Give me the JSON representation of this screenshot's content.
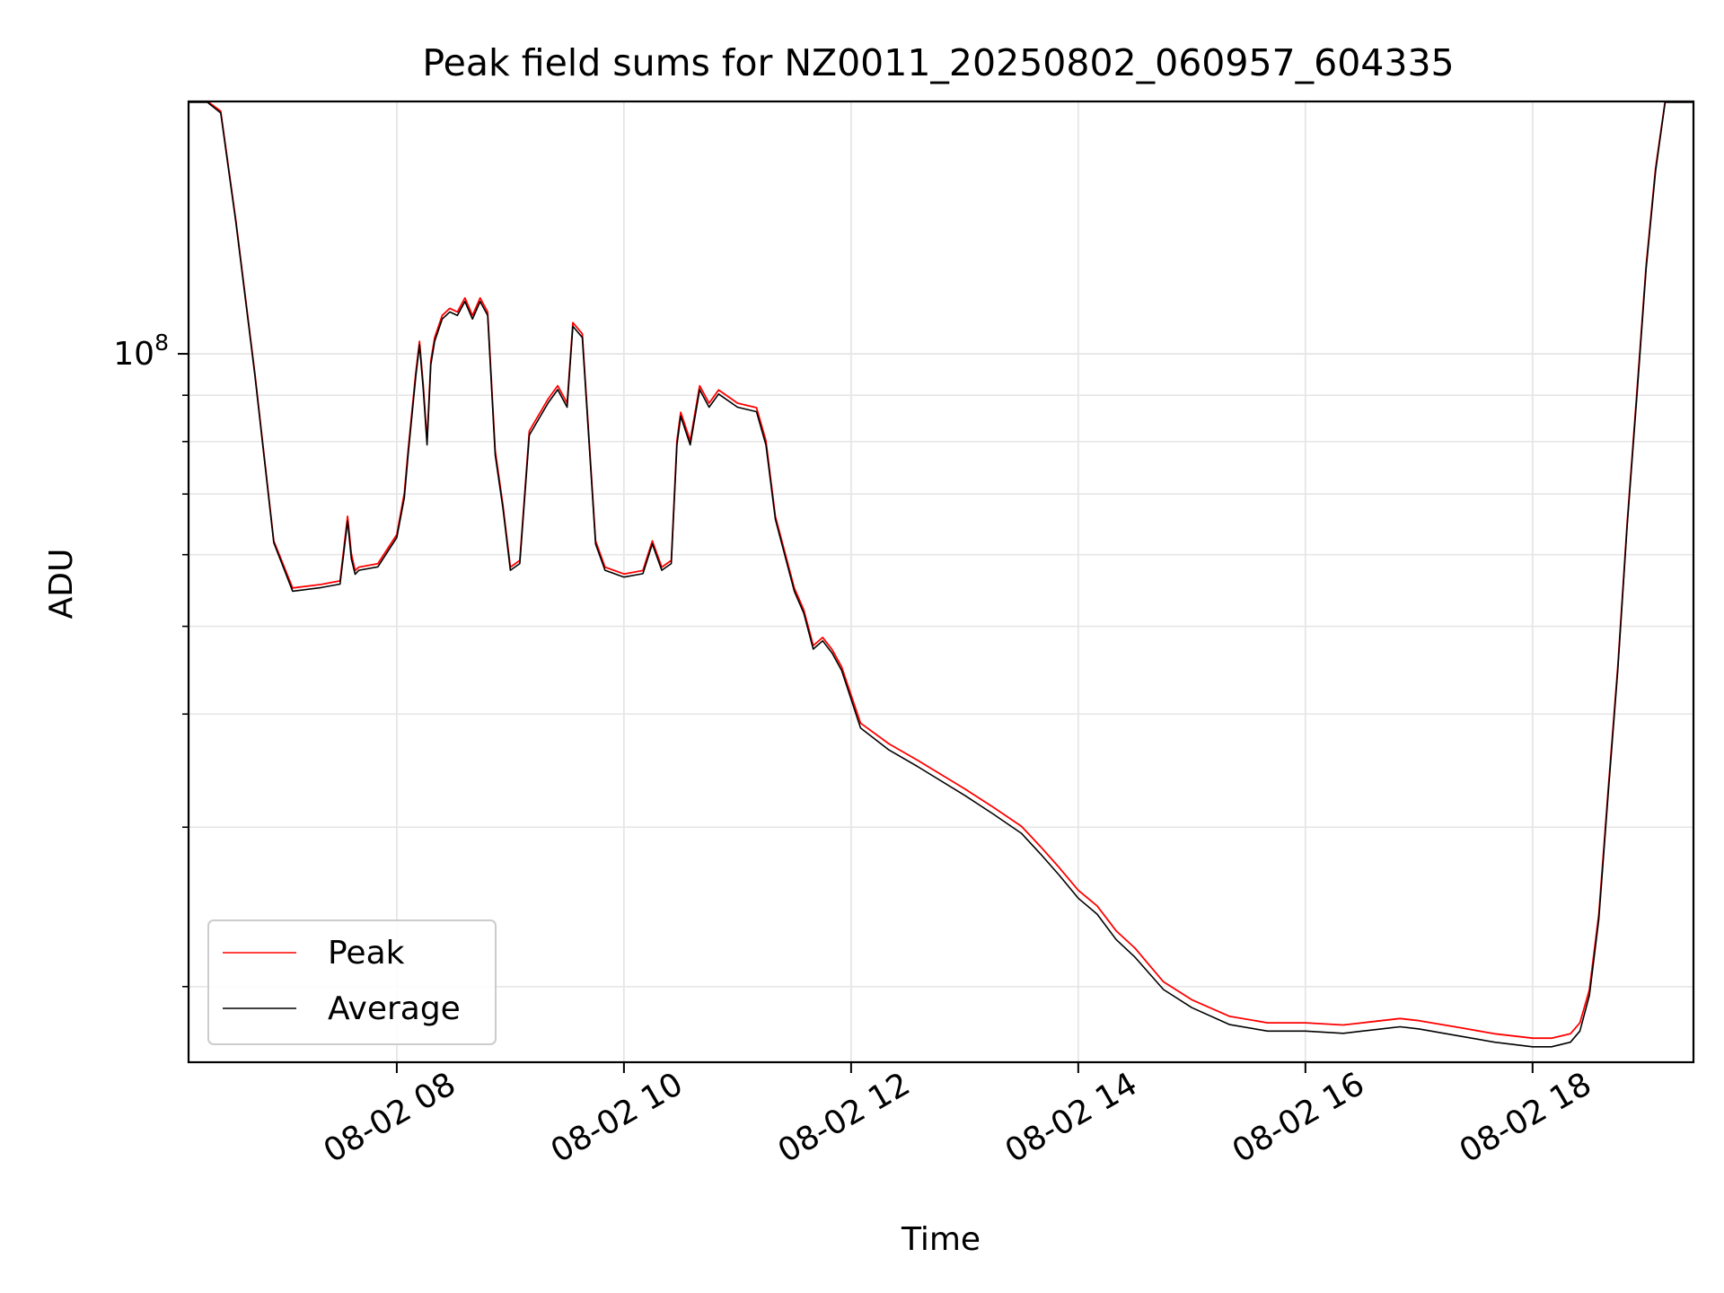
{
  "chart_data": {
    "type": "line",
    "title": "Peak field sums for NZ0011_20250802_060957_604335",
    "xlabel": "Time",
    "ylabel": "ADU",
    "yscale": "log",
    "grid": true,
    "legend_position": "lower-left",
    "xlim": [
      "08-02 06:10",
      "08-02 19:25"
    ],
    "ylim": [
      16500000,
      190000000
    ],
    "x_ticks": [
      "08-02 08",
      "08-02 10",
      "08-02 12",
      "08-02 14",
      "08-02 16",
      "08-02 18"
    ],
    "x_tick_hours": [
      8,
      10,
      12,
      14,
      16,
      18
    ],
    "y_ticks": [
      {
        "value": 100000000,
        "base": "10",
        "exp": "8"
      }
    ],
    "y_minor_ticks": [
      20000000,
      30000000,
      40000000,
      50000000,
      60000000,
      70000000,
      80000000,
      90000000,
      200000000
    ],
    "colors": {
      "peak": "#ff0000",
      "average": "#000000",
      "grid": "#e6e6e6"
    },
    "series": [
      {
        "name": "Peak",
        "color": "#ff0000",
        "x": [
          "06:10",
          "06:20",
          "06:27",
          "06:35",
          "06:45",
          "06:55",
          "07:05",
          "07:20",
          "07:30",
          "07:34",
          "07:36",
          "07:38",
          "07:40",
          "07:50",
          "08:00",
          "08:04",
          "08:06",
          "08:10",
          "08:12",
          "08:14",
          "08:16",
          "08:18",
          "08:20",
          "08:24",
          "08:28",
          "08:32",
          "08:36",
          "08:40",
          "08:44",
          "08:48",
          "08:52",
          "08:56",
          "09:00",
          "09:05",
          "09:10",
          "09:20",
          "09:25",
          "09:30",
          "09:33",
          "09:38",
          "09:45",
          "09:50",
          "10:00",
          "10:10",
          "10:15",
          "10:20",
          "10:25",
          "10:28",
          "10:30",
          "10:35",
          "10:40",
          "10:45",
          "10:50",
          "11:00",
          "11:10",
          "11:15",
          "11:20",
          "11:30",
          "11:35",
          "11:40",
          "11:45",
          "11:50",
          "11:55",
          "12:05",
          "12:20",
          "12:35",
          "13:00",
          "13:15",
          "13:30",
          "13:40",
          "13:50",
          "14:00",
          "14:10",
          "14:20",
          "14:30",
          "14:45",
          "15:00",
          "15:20",
          "15:40",
          "16:00",
          "16:20",
          "16:30",
          "16:40",
          "16:50",
          "17:00",
          "17:20",
          "17:40",
          "18:00",
          "18:10",
          "18:20",
          "18:25",
          "18:30",
          "18:35",
          "18:40",
          "18:45",
          "18:50",
          "18:55",
          "19:00",
          "19:05",
          "19:10",
          "19:15",
          "19:20",
          "19:25"
        ],
        "y": [
          190000000,
          190000000,
          185000000,
          140000000,
          95000000,
          62000000,
          55000000,
          55500000,
          56000000,
          66000000,
          60000000,
          57500000,
          58000000,
          58500000,
          63000000,
          70000000,
          78000000,
          95000000,
          103000000,
          92000000,
          80000000,
          98000000,
          104000000,
          110000000,
          112000000,
          111000000,
          115000000,
          110000000,
          115000000,
          111000000,
          78000000,
          68000000,
          58000000,
          59000000,
          82000000,
          89000000,
          92000000,
          88000000,
          108000000,
          105000000,
          62000000,
          58000000,
          57000000,
          57500000,
          62000000,
          58000000,
          59000000,
          80000000,
          86000000,
          80000000,
          92000000,
          88000000,
          91000000,
          88000000,
          87000000,
          80000000,
          66000000,
          55000000,
          52000000,
          47500000,
          48500000,
          47000000,
          45000000,
          39000000,
          37000000,
          35500000,
          33000000,
          31500000,
          30000000,
          28500000,
          27000000,
          25500000,
          24500000,
          23000000,
          22000000,
          20200000,
          19300000,
          18500000,
          18200000,
          18200000,
          18100000,
          18200000,
          18300000,
          18400000,
          18300000,
          18000000,
          17700000,
          17500000,
          17500000,
          17700000,
          18200000,
          19800000,
          24000000,
          33000000,
          45000000,
          65000000,
          90000000,
          125000000,
          160000000,
          190000000,
          190000000,
          190000000,
          190000000
        ]
      },
      {
        "name": "Average",
        "color": "#000000",
        "x": [
          "06:10",
          "06:20",
          "06:27",
          "06:35",
          "06:45",
          "06:55",
          "07:05",
          "07:20",
          "07:30",
          "07:34",
          "07:36",
          "07:38",
          "07:40",
          "07:50",
          "08:00",
          "08:04",
          "08:06",
          "08:10",
          "08:12",
          "08:14",
          "08:16",
          "08:18",
          "08:20",
          "08:24",
          "08:28",
          "08:32",
          "08:36",
          "08:40",
          "08:44",
          "08:48",
          "08:52",
          "08:56",
          "09:00",
          "09:05",
          "09:10",
          "09:20",
          "09:25",
          "09:30",
          "09:33",
          "09:38",
          "09:45",
          "09:50",
          "10:00",
          "10:10",
          "10:15",
          "10:20",
          "10:25",
          "10:28",
          "10:30",
          "10:35",
          "10:40",
          "10:45",
          "10:50",
          "11:00",
          "11:10",
          "11:15",
          "11:20",
          "11:30",
          "11:35",
          "11:40",
          "11:45",
          "11:50",
          "11:55",
          "12:05",
          "12:20",
          "12:35",
          "13:00",
          "13:15",
          "13:30",
          "13:40",
          "13:50",
          "14:00",
          "14:10",
          "14:20",
          "14:30",
          "14:45",
          "15:00",
          "15:20",
          "15:40",
          "16:00",
          "16:20",
          "16:30",
          "16:40",
          "16:50",
          "17:00",
          "17:20",
          "17:40",
          "18:00",
          "18:10",
          "18:20",
          "18:25",
          "18:30",
          "18:35",
          "18:40",
          "18:45",
          "18:50",
          "18:55",
          "19:00",
          "19:05",
          "19:10",
          "19:15",
          "19:20",
          "19:25"
        ],
        "y": [
          190000000,
          190000000,
          185000000,
          140000000,
          95000000,
          62000000,
          54800000,
          55300000,
          55800000,
          65500000,
          59500000,
          57200000,
          57800000,
          58300000,
          62800000,
          69500000,
          77500000,
          94500000,
          102500000,
          91500000,
          79500000,
          97500000,
          103500000,
          109500000,
          111500000,
          110500000,
          114500000,
          109500000,
          114500000,
          110500000,
          77500000,
          67800000,
          57800000,
          58800000,
          81500000,
          88500000,
          91500000,
          87500000,
          107500000,
          104500000,
          61800000,
          57800000,
          56800000,
          57300000,
          61800000,
          57800000,
          58800000,
          79500000,
          85500000,
          79500000,
          91500000,
          87500000,
          90500000,
          87500000,
          86500000,
          79500000,
          65800000,
          54800000,
          51800000,
          47300000,
          48300000,
          46800000,
          44800000,
          38700000,
          36600000,
          35100000,
          32600000,
          31100000,
          29600000,
          28100000,
          26600000,
          25100000,
          24100000,
          22600000,
          21600000,
          19900000,
          19000000,
          18200000,
          17900000,
          17900000,
          17800000,
          17900000,
          18000000,
          18100000,
          18000000,
          17700000,
          17400000,
          17200000,
          17200000,
          17400000,
          17900000,
          19600000,
          23800000,
          32800000,
          44800000,
          64800000,
          89500000,
          124500000,
          159500000,
          190000000,
          190000000,
          190000000,
          190000000
        ]
      }
    ]
  }
}
